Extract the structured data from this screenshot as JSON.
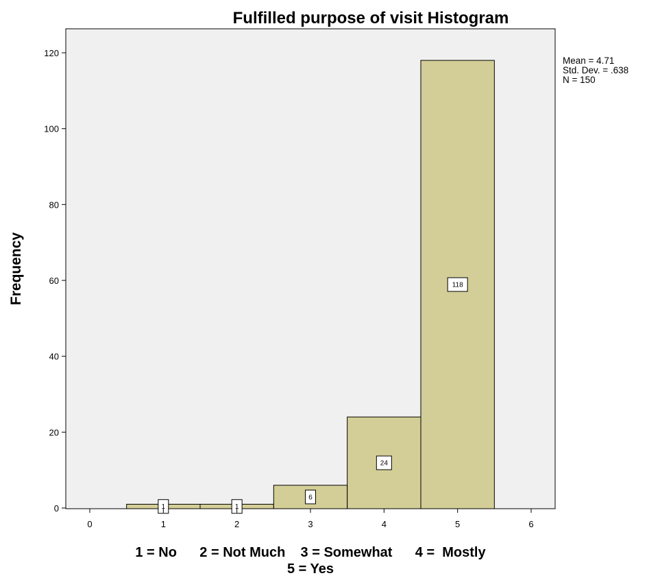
{
  "chart_data": {
    "type": "bar",
    "title": "Fulfilled purpose of visit Histogram",
    "ylabel": "Frequency",
    "xlabel_line1": "1 = No      2 = Not Much    3 = Somewhat      4 =  Mostly",
    "xlabel_line2": "5 = Yes",
    "categories": [
      1,
      2,
      3,
      4,
      5
    ],
    "values": [
      1,
      1,
      6,
      24,
      118
    ],
    "data_labels": [
      "1",
      "1",
      "6",
      "24",
      "118"
    ],
    "xlim": [
      0,
      6
    ],
    "ylim": [
      0,
      126
    ],
    "x_ticks": [
      0,
      1,
      2,
      3,
      4,
      5,
      6
    ],
    "y_ticks": [
      0,
      20,
      40,
      60,
      80,
      100,
      120
    ],
    "bar_color": "#d3ce97",
    "plot_background": "#f0f0f0",
    "grid": false,
    "stats": {
      "mean": "Mean = 4.71",
      "std_dev": "Std. Dev. = .638",
      "n": "N = 150"
    }
  }
}
